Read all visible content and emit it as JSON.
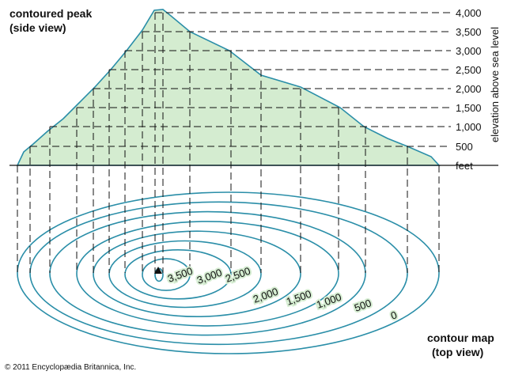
{
  "side_view": {
    "title": [
      "contoured peak",
      "(side view)"
    ],
    "elevations": [
      "4,000",
      "3,500",
      "3,000",
      "2,500",
      "2,000",
      "1,500",
      "1,000",
      "500"
    ],
    "unit": "feet",
    "axis_label": "elevation above sea level"
  },
  "top_view": {
    "title": [
      "contour map",
      "(top view)"
    ],
    "contour_labels": [
      "3,500",
      "3,000",
      "2,500",
      "2,000",
      "1,500",
      "1,000",
      "500",
      "0"
    ]
  },
  "copyright": "© 2011 Encyclopædia Britannica, Inc."
}
